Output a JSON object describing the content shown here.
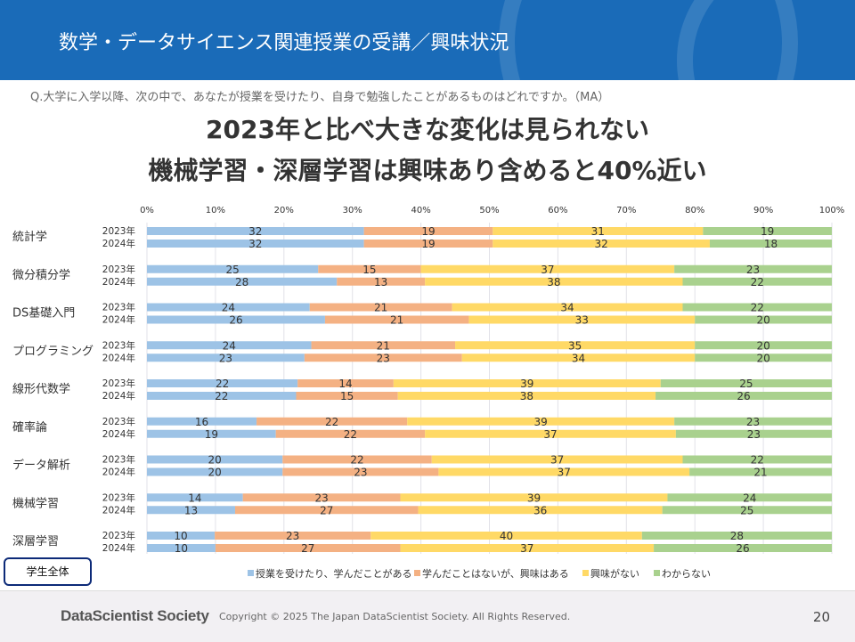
{
  "header": {
    "title": "数学・データサイエンス関連授業の受講／興味状況"
  },
  "question": "Q.大学に入学以降、次の中で、あなたが授業を受けたり、自身で勉強したことがあるものはどれですか。（MA）",
  "headline": [
    "2023年と比べ大きな変化は見られない",
    "機械学習・深層学習は興味あり含めると40%近い"
  ],
  "badge": "学生全体",
  "footer": {
    "logo": "DataScientist Society",
    "copyright": "Copyright © 2025  The Japan DataScientist Society. All Rights Reserved.",
    "page": "20"
  },
  "chart_data": {
    "type": "bar",
    "orientation": "horizontal-stacked-100",
    "x_ticks": [
      "0%",
      "10%",
      "20%",
      "30%",
      "40%",
      "50%",
      "60%",
      "70%",
      "80%",
      "90%",
      "100%"
    ],
    "xlim": [
      0,
      100
    ],
    "grid": true,
    "legend_position": "bottom",
    "colors": [
      "#9dc3e6",
      "#f4b183",
      "#ffd966",
      "#a9d18e"
    ],
    "series_names": [
      "授業を受けたり、学んだことがある",
      "学んだことはないが、興味はある",
      "興味がない",
      "わからない"
    ],
    "years": [
      "2023年",
      "2024年"
    ],
    "categories": [
      {
        "name": "統計学",
        "values": [
          [
            32,
            19,
            31,
            19
          ],
          [
            32,
            19,
            32,
            18
          ]
        ]
      },
      {
        "name": "微分積分学",
        "values": [
          [
            25,
            15,
            37,
            23
          ],
          [
            28,
            13,
            38,
            22
          ]
        ]
      },
      {
        "name": "DS基礎入門",
        "values": [
          [
            24,
            21,
            34,
            22
          ],
          [
            26,
            21,
            33,
            20
          ]
        ]
      },
      {
        "name": "プログラミング",
        "values": [
          [
            24,
            21,
            35,
            20
          ],
          [
            23,
            23,
            34,
            20
          ]
        ]
      },
      {
        "name": "線形代数学",
        "values": [
          [
            22,
            14,
            39,
            25
          ],
          [
            22,
            15,
            38,
            26
          ]
        ]
      },
      {
        "name": "確率論",
        "values": [
          [
            16,
            22,
            39,
            23
          ],
          [
            19,
            22,
            37,
            23
          ]
        ]
      },
      {
        "name": "データ解析",
        "values": [
          [
            20,
            22,
            37,
            22
          ],
          [
            20,
            23,
            37,
            21
          ]
        ]
      },
      {
        "name": "機械学習",
        "values": [
          [
            14,
            23,
            39,
            24
          ],
          [
            13,
            27,
            36,
            25
          ]
        ]
      },
      {
        "name": "深層学習",
        "values": [
          [
            10,
            23,
            40,
            28
          ],
          [
            10,
            27,
            37,
            26
          ]
        ]
      }
    ]
  }
}
